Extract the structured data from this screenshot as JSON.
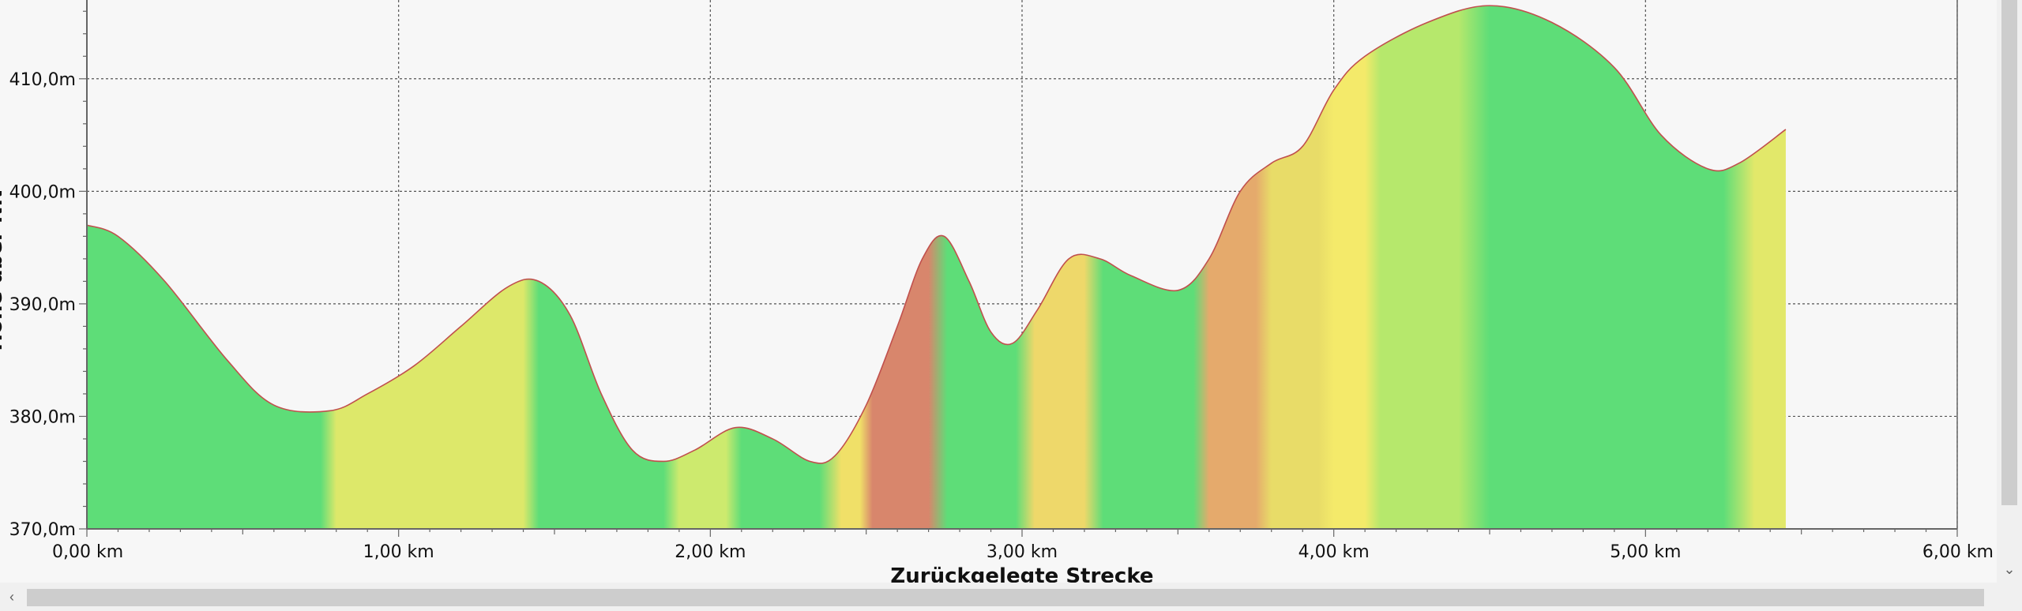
{
  "chart_data": {
    "type": "area",
    "title": "",
    "xlabel": "Zurückgelegte Strecke",
    "ylabel": "Höhe über NN",
    "xlim": [
      0,
      6
    ],
    "ylim": [
      370,
      417
    ],
    "x_ticks": [
      {
        "value": 0,
        "label": "0,00 km"
      },
      {
        "value": 1,
        "label": "1,00 km"
      },
      {
        "value": 2,
        "label": "2,00 km"
      },
      {
        "value": 3,
        "label": "3,00 km"
      },
      {
        "value": 4,
        "label": "4,00 km"
      },
      {
        "value": 5,
        "label": "5,00 km"
      },
      {
        "value": 6,
        "label": "6,00 km"
      }
    ],
    "y_ticks": [
      {
        "value": 370,
        "label": "370,0m"
      },
      {
        "value": 380,
        "label": "380,0m"
      },
      {
        "value": 390,
        "label": "390,0m"
      },
      {
        "value": 400,
        "label": "400,0m"
      },
      {
        "value": 410,
        "label": "410,0m"
      }
    ],
    "grid": true,
    "line_color": "#c0504d",
    "series": [
      {
        "x": [
          0,
          0.1,
          0.25,
          0.45,
          0.6,
          0.78,
          0.9,
          1.05,
          1.2,
          1.35,
          1.45,
          1.55,
          1.65,
          1.75,
          1.85,
          1.95,
          2.08,
          2.2,
          2.32,
          2.4,
          2.5,
          2.6,
          2.68,
          2.75,
          2.83,
          2.9,
          2.97,
          3.05,
          3.15,
          3.25,
          3.35,
          3.5,
          3.6,
          3.7,
          3.8,
          3.9,
          4.0,
          4.1,
          4.3,
          4.5,
          4.7,
          4.9,
          5.05,
          5.2,
          5.3,
          5.45
        ],
        "y": [
          397,
          396,
          392,
          385,
          381,
          380.5,
          382,
          384.5,
          388,
          391.5,
          392,
          389,
          382,
          377,
          376,
          377,
          379,
          378,
          376,
          376.5,
          381,
          388,
          394,
          396,
          392,
          387.5,
          386.5,
          389.5,
          394,
          394,
          392.5,
          391.2,
          394,
          400,
          402.5,
          404,
          409,
          412,
          415,
          416.5,
          415,
          411,
          405,
          402,
          402.5,
          405.5
        ]
      }
    ],
    "slope_colors": [
      {
        "from": 0,
        "to": 0.75,
        "color": "#5edd78"
      },
      {
        "from": 0.8,
        "to": 1.4,
        "color": "#dde86a"
      },
      {
        "from": 1.45,
        "to": 1.85,
        "color": "#5edd78"
      },
      {
        "from": 1.9,
        "to": 2.05,
        "color": "#cdea6e"
      },
      {
        "from": 2.1,
        "to": 2.35,
        "color": "#5edd78"
      },
      {
        "from": 2.42,
        "to": 2.48,
        "color": "#f0e068"
      },
      {
        "from": 2.52,
        "to": 2.7,
        "color": "#d8866c"
      },
      {
        "from": 2.76,
        "to": 2.98,
        "color": "#5edd78"
      },
      {
        "from": 3.04,
        "to": 3.2,
        "color": "#eed86a"
      },
      {
        "from": 3.26,
        "to": 3.55,
        "color": "#5edd78"
      },
      {
        "from": 3.6,
        "to": 3.75,
        "color": "#e5aa6c"
      },
      {
        "from": 3.8,
        "to": 3.95,
        "color": "#e8dc68"
      },
      {
        "from": 4.0,
        "to": 4.1,
        "color": "#f4ea6a"
      },
      {
        "from": 4.15,
        "to": 4.4,
        "color": "#b6e86c"
      },
      {
        "from": 4.5,
        "to": 5.25,
        "color": "#5edd78"
      },
      {
        "from": 5.35,
        "to": 5.45,
        "color": "#e2e86a"
      }
    ]
  }
}
